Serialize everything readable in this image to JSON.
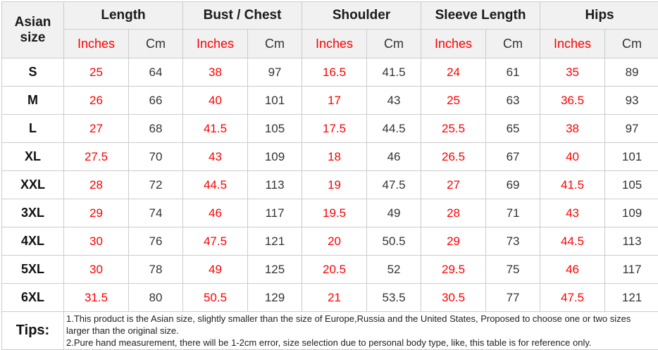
{
  "chart_data": {
    "type": "table",
    "corner_header": "Asian size",
    "column_groups": [
      "Length",
      "Bust / Chest",
      "Shoulder",
      "Sleeve Length",
      "Hips"
    ],
    "unit_subheaders": [
      "Inches",
      "Cm"
    ],
    "rows": [
      {
        "size": "S",
        "values": [
          "25",
          "64",
          "38",
          "97",
          "16.5",
          "41.5",
          "24",
          "61",
          "35",
          "89"
        ]
      },
      {
        "size": "M",
        "values": [
          "26",
          "66",
          "40",
          "101",
          "17",
          "43",
          "25",
          "63",
          "36.5",
          "93"
        ]
      },
      {
        "size": "L",
        "values": [
          "27",
          "68",
          "41.5",
          "105",
          "17.5",
          "44.5",
          "25.5",
          "65",
          "38",
          "97"
        ]
      },
      {
        "size": "XL",
        "values": [
          "27.5",
          "70",
          "43",
          "109",
          "18",
          "46",
          "26.5",
          "67",
          "40",
          "101"
        ]
      },
      {
        "size": "XXL",
        "values": [
          "28",
          "72",
          "44.5",
          "113",
          "19",
          "47.5",
          "27",
          "69",
          "41.5",
          "105"
        ]
      },
      {
        "size": "3XL",
        "values": [
          "29",
          "74",
          "46",
          "117",
          "19.5",
          "49",
          "28",
          "71",
          "43",
          "109"
        ]
      },
      {
        "size": "4XL",
        "values": [
          "30",
          "76",
          "47.5",
          "121",
          "20",
          "50.5",
          "29",
          "73",
          "44.5",
          "113"
        ]
      },
      {
        "size": "5XL",
        "values": [
          "30",
          "78",
          "49",
          "125",
          "20.5",
          "52",
          "29.5",
          "75",
          "46",
          "117"
        ]
      },
      {
        "size": "6XL",
        "values": [
          "31.5",
          "80",
          "50.5",
          "129",
          "21",
          "53.5",
          "30.5",
          "77",
          "47.5",
          "121"
        ]
      }
    ]
  },
  "tips": {
    "label": "Tips:",
    "lines": [
      "1.This product is the Asian size, slightly smaller than the size of Europe,Russia and the United States, Proposed to choose one or two sizes larger than the original size.",
      "2.Pure hand measurement, there will be 1-2cm error, size selection due to personal body type, like, this table is for reference only."
    ]
  },
  "colors": {
    "accent_red": "#fe0000",
    "text_dark": "#333333",
    "header_bg": "#f1f1f1",
    "border": "#cccccc"
  }
}
